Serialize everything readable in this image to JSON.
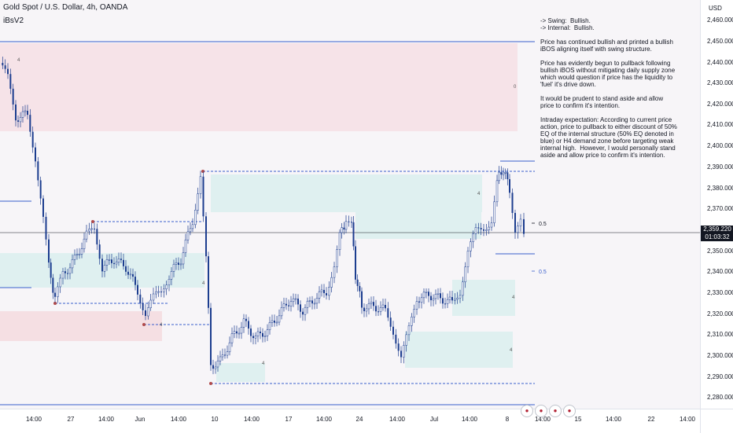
{
  "header": {
    "title": "Gold Spot / U.S. Dollar, 4h, OANDA",
    "indicator": "iBsV2"
  },
  "axis": {
    "currency": "USD",
    "price_ticks": [
      "2,460.000",
      "2,450.000",
      "2,440.000",
      "2,430.000",
      "2,420.000",
      "2,410.000",
      "2,400.000",
      "2,390.000",
      "2,380.000",
      "2,370.000",
      "2,350.000",
      "2,340.000",
      "2,330.000",
      "2,320.000",
      "2,310.000",
      "2,300.000",
      "2,290.000",
      "2,280.000"
    ],
    "current_price": "2,359.220",
    "countdown": "01:03:32",
    "time_ticks": [
      "14:00",
      "27",
      "14:00",
      "Jun",
      "14:00",
      "10",
      "14:00",
      "17",
      "14:00",
      "24",
      "14:00",
      "Jul",
      "14:00",
      "8",
      "14:00",
      "15",
      "14:00",
      "22",
      "14:00"
    ]
  },
  "annotations": {
    "fib_upper": "0.5",
    "fib_lower": "0.5",
    "zone_marks": [
      "4",
      "4",
      "4",
      "4",
      "4",
      "4",
      "4",
      "0"
    ]
  },
  "notes": [
    "-> Swing:  Bullish.\n-> Internal:  Bullish.",
    "Price has continued bullish and printed a bullish iBOS aligning itself with swing structure.",
    "Price has evidently begun to pullback following bullish iBOS without mitigating daily supply zone which would question if price has the liquidity to 'fuel' it's drive down.",
    "It would be prudent to stand aside and allow price to confirm it's intention.",
    "Intraday expectation: According to current price action, price to pullback to either discount of 50% EQ of the internal structure (50% EQ denoted in blue) or H4 demand zone before targeting weak internal high.  However, I would personally stand aside and allow price to confirm it's intention."
  ],
  "colors": {
    "candle": "#1c3d8f",
    "supply_zone": "#f5dfe3",
    "demand_zone": "#dff0f0",
    "dashed_line": "#3a5fcd",
    "price_line": "#131722"
  },
  "event_icons": [
    "us-flag-icon",
    "us-flag-icon",
    "us-flag-icon",
    "us-flag-icon"
  ]
}
